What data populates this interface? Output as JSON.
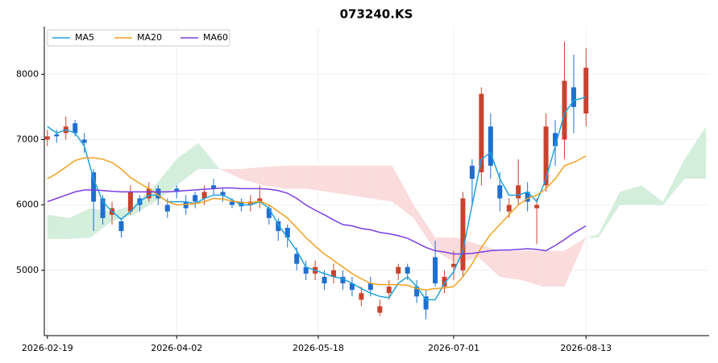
{
  "chart_data": {
    "type": "candlestick",
    "title": "073240.KS",
    "x": [
      "2026-02-19",
      "2026-02-22",
      "2026-02-25",
      "2026-02-28",
      "2026-03-03",
      "2026-03-06",
      "2026-03-09",
      "2026-03-12",
      "2026-03-15",
      "2026-03-18",
      "2026-03-21",
      "2026-03-24",
      "2026-03-27",
      "2026-03-30",
      "2026-04-02",
      "2026-04-05",
      "2026-04-08",
      "2026-04-11",
      "2026-04-14",
      "2026-04-17",
      "2026-04-20",
      "2026-04-23",
      "2026-04-26",
      "2026-04-29",
      "2026-05-02",
      "2026-05-05",
      "2026-05-08",
      "2026-05-11",
      "2026-05-14",
      "2026-05-17",
      "2026-05-20",
      "2026-05-23",
      "2026-05-26",
      "2026-05-29",
      "2026-06-01",
      "2026-06-04",
      "2026-06-07",
      "2026-06-10",
      "2026-06-13",
      "2026-06-16",
      "2026-06-19",
      "2026-06-22",
      "2026-06-25",
      "2026-06-28",
      "2026-07-01",
      "2026-07-04",
      "2026-07-07",
      "2026-07-10",
      "2026-07-13",
      "2026-07-16",
      "2026-07-19",
      "2026-07-22",
      "2026-07-25",
      "2026-07-28",
      "2026-07-31",
      "2026-08-03",
      "2026-08-06",
      "2026-08-09",
      "2026-08-13"
    ],
    "open": [
      7000,
      7080,
      7100,
      7250,
      7000,
      6500,
      6100,
      5850,
      5750,
      5900,
      6100,
      6100,
      6250,
      6000,
      6250,
      6050,
      6150,
      6100,
      6300,
      6200,
      6050,
      6050,
      6000,
      6050,
      5950,
      5750,
      5650,
      5250,
      5050,
      4950,
      4900,
      4900,
      4900,
      4800,
      4550,
      4800,
      4350,
      4650,
      4950,
      5050,
      4750,
      4600,
      5200,
      4750,
      5050,
      5000,
      6600,
      6500,
      7200,
      6300,
      5900,
      6100,
      6200,
      5950,
      6300,
      7100,
      7000,
      7800,
      7400
    ],
    "high": [
      7150,
      7150,
      7350,
      7300,
      7100,
      6550,
      6150,
      6050,
      5800,
      6300,
      6150,
      6350,
      6300,
      6100,
      6300,
      6150,
      6200,
      6300,
      6400,
      6250,
      6100,
      6100,
      6150,
      6300,
      6000,
      5800,
      5700,
      5350,
      5150,
      5150,
      5000,
      5100,
      5000,
      4900,
      4750,
      4900,
      4550,
      4850,
      5100,
      5100,
      4850,
      4700,
      5450,
      5000,
      5300,
      6200,
      6700,
      7800,
      7400,
      6500,
      6100,
      6700,
      6350,
      6100,
      7400,
      7300,
      8500,
      8300,
      8400
    ],
    "low": [
      6900,
      6950,
      7000,
      7050,
      6800,
      5600,
      5700,
      5700,
      5500,
      5850,
      5900,
      6050,
      6000,
      5800,
      6100,
      5850,
      5950,
      6000,
      6150,
      6050,
      5950,
      5900,
      5900,
      5950,
      5700,
      5450,
      5350,
      5000,
      4850,
      4850,
      4700,
      4800,
      4700,
      4600,
      4450,
      4600,
      4300,
      4550,
      4850,
      4850,
      4500,
      4250,
      4750,
      4650,
      4850,
      4900,
      6000,
      6300,
      6400,
      5900,
      5800,
      6000,
      5900,
      5400,
      6200,
      6600,
      6700,
      7100,
      7200
    ],
    "close": [
      7050,
      7050,
      7200,
      7100,
      6950,
      6050,
      5800,
      5950,
      5600,
      6200,
      6000,
      6250,
      6100,
      5900,
      6200,
      5950,
      6050,
      6200,
      6250,
      6150,
      6000,
      5980,
      6050,
      6100,
      5800,
      5600,
      5500,
      5100,
      4950,
      5050,
      4800,
      5000,
      4800,
      4700,
      4650,
      4700,
      4450,
      4750,
      5050,
      4950,
      4600,
      4400,
      4800,
      4900,
      5100,
      6100,
      6400,
      7700,
      6600,
      6100,
      6000,
      6300,
      6050,
      6000,
      7200,
      6900,
      7900,
      7500,
      8100
    ],
    "up_color": "#c8432f",
    "down_color": "#1f6fcf",
    "series": [
      {
        "name": "MA5",
        "color": "#1fa3dc",
        "values": [
          7200,
          7100,
          7150,
          7100,
          6900,
          6400,
          6050,
          5900,
          5780,
          5900,
          6050,
          6150,
          6150,
          6050,
          6050,
          6050,
          6020,
          6100,
          6150,
          6150,
          6080,
          6000,
          6000,
          6050,
          5950,
          5700,
          5500,
          5300,
          5050,
          5000,
          4950,
          4900,
          4870,
          4800,
          4720,
          4650,
          4600,
          4580,
          4800,
          4900,
          4750,
          4550,
          4550,
          4800,
          4980,
          5300,
          6000,
          6700,
          6800,
          6400,
          6150,
          6150,
          6200,
          6050,
          6400,
          6900,
          7400,
          7600,
          7650
        ]
      },
      {
        "name": "MA20",
        "color": "#f0a020",
        "values": [
          6400,
          6480,
          6580,
          6680,
          6720,
          6720,
          6700,
          6650,
          6550,
          6420,
          6330,
          6250,
          6150,
          6050,
          6000,
          6010,
          6020,
          6050,
          6100,
          6090,
          6060,
          6040,
          6030,
          6060,
          6000,
          5900,
          5800,
          5650,
          5500,
          5370,
          5250,
          5150,
          5050,
          4950,
          4870,
          4800,
          4780,
          4780,
          4780,
          4770,
          4720,
          4700,
          4720,
          4730,
          4750,
          4900,
          5100,
          5350,
          5550,
          5700,
          5850,
          6000,
          6100,
          6150,
          6250,
          6400,
          6600,
          6650,
          6750
        ]
      },
      {
        "name": "MA60",
        "color": "#7b3fe4",
        "values": [
          6050,
          6100,
          6150,
          6200,
          6230,
          6230,
          6220,
          6210,
          6200,
          6200,
          6200,
          6200,
          6200,
          6200,
          6210,
          6220,
          6230,
          6240,
          6250,
          6260,
          6260,
          6250,
          6250,
          6250,
          6240,
          6220,
          6180,
          6100,
          6000,
          5920,
          5850,
          5770,
          5700,
          5680,
          5640,
          5620,
          5580,
          5560,
          5530,
          5490,
          5420,
          5350,
          5300,
          5280,
          5250,
          5250,
          5260,
          5280,
          5300,
          5310,
          5310,
          5320,
          5330,
          5320,
          5300,
          5380,
          5470,
          5570,
          5680
        ]
      }
    ],
    "cloud": {
      "x": [
        "2026-02-19",
        "2026-02-26",
        "2026-03-05",
        "2026-03-12",
        "2026-03-19",
        "2026-03-26",
        "2026-04-02",
        "2026-04-09",
        "2026-04-16",
        "2026-04-23",
        "2026-04-30",
        "2026-05-07",
        "2026-05-14",
        "2026-05-21",
        "2026-05-28",
        "2026-06-04",
        "2026-06-11",
        "2026-06-18",
        "2026-06-25",
        "2026-07-02",
        "2026-07-09",
        "2026-07-16",
        "2026-07-23",
        "2026-07-30",
        "2026-08-06",
        "2026-08-13",
        "2026-08-17",
        "2026-08-24",
        "2026-08-31",
        "2026-09-07",
        "2026-09-14",
        "2026-09-21"
      ],
      "span_a": [
        5850,
        5800,
        5950,
        5900,
        6000,
        6300,
        6700,
        6950,
        6550,
        6400,
        6300,
        6250,
        6250,
        6200,
        6150,
        6100,
        6050,
        5800,
        5300,
        5100,
        5200,
        4900,
        4850,
        4750,
        4750,
        5500,
        5550,
        6200,
        6300,
        6050,
        6700,
        7200
      ],
      "span_b": [
        5480,
        5480,
        5500,
        5750,
        5850,
        6050,
        6300,
        6550,
        6550,
        6550,
        6580,
        6600,
        6600,
        6600,
        6600,
        6600,
        6600,
        6000,
        5500,
        5500,
        5400,
        5300,
        5300,
        5300,
        5300,
        5500,
        5500,
        6000,
        6000,
        6000,
        6400,
        6400
      ],
      "up_color": "#d4eedc",
      "down_color": "#fadcdd"
    },
    "xlim": [
      "2026-02-18",
      "2026-09-22"
    ],
    "xticks": [
      "2026-02-19",
      "2026-04-02",
      "2026-05-18",
      "2026-07-01",
      "2026-08-13"
    ],
    "ylim": [
      4000,
      8730
    ],
    "yticks": [
      5000,
      6000,
      7000,
      8000
    ],
    "grid": true,
    "legend": "upper left"
  }
}
